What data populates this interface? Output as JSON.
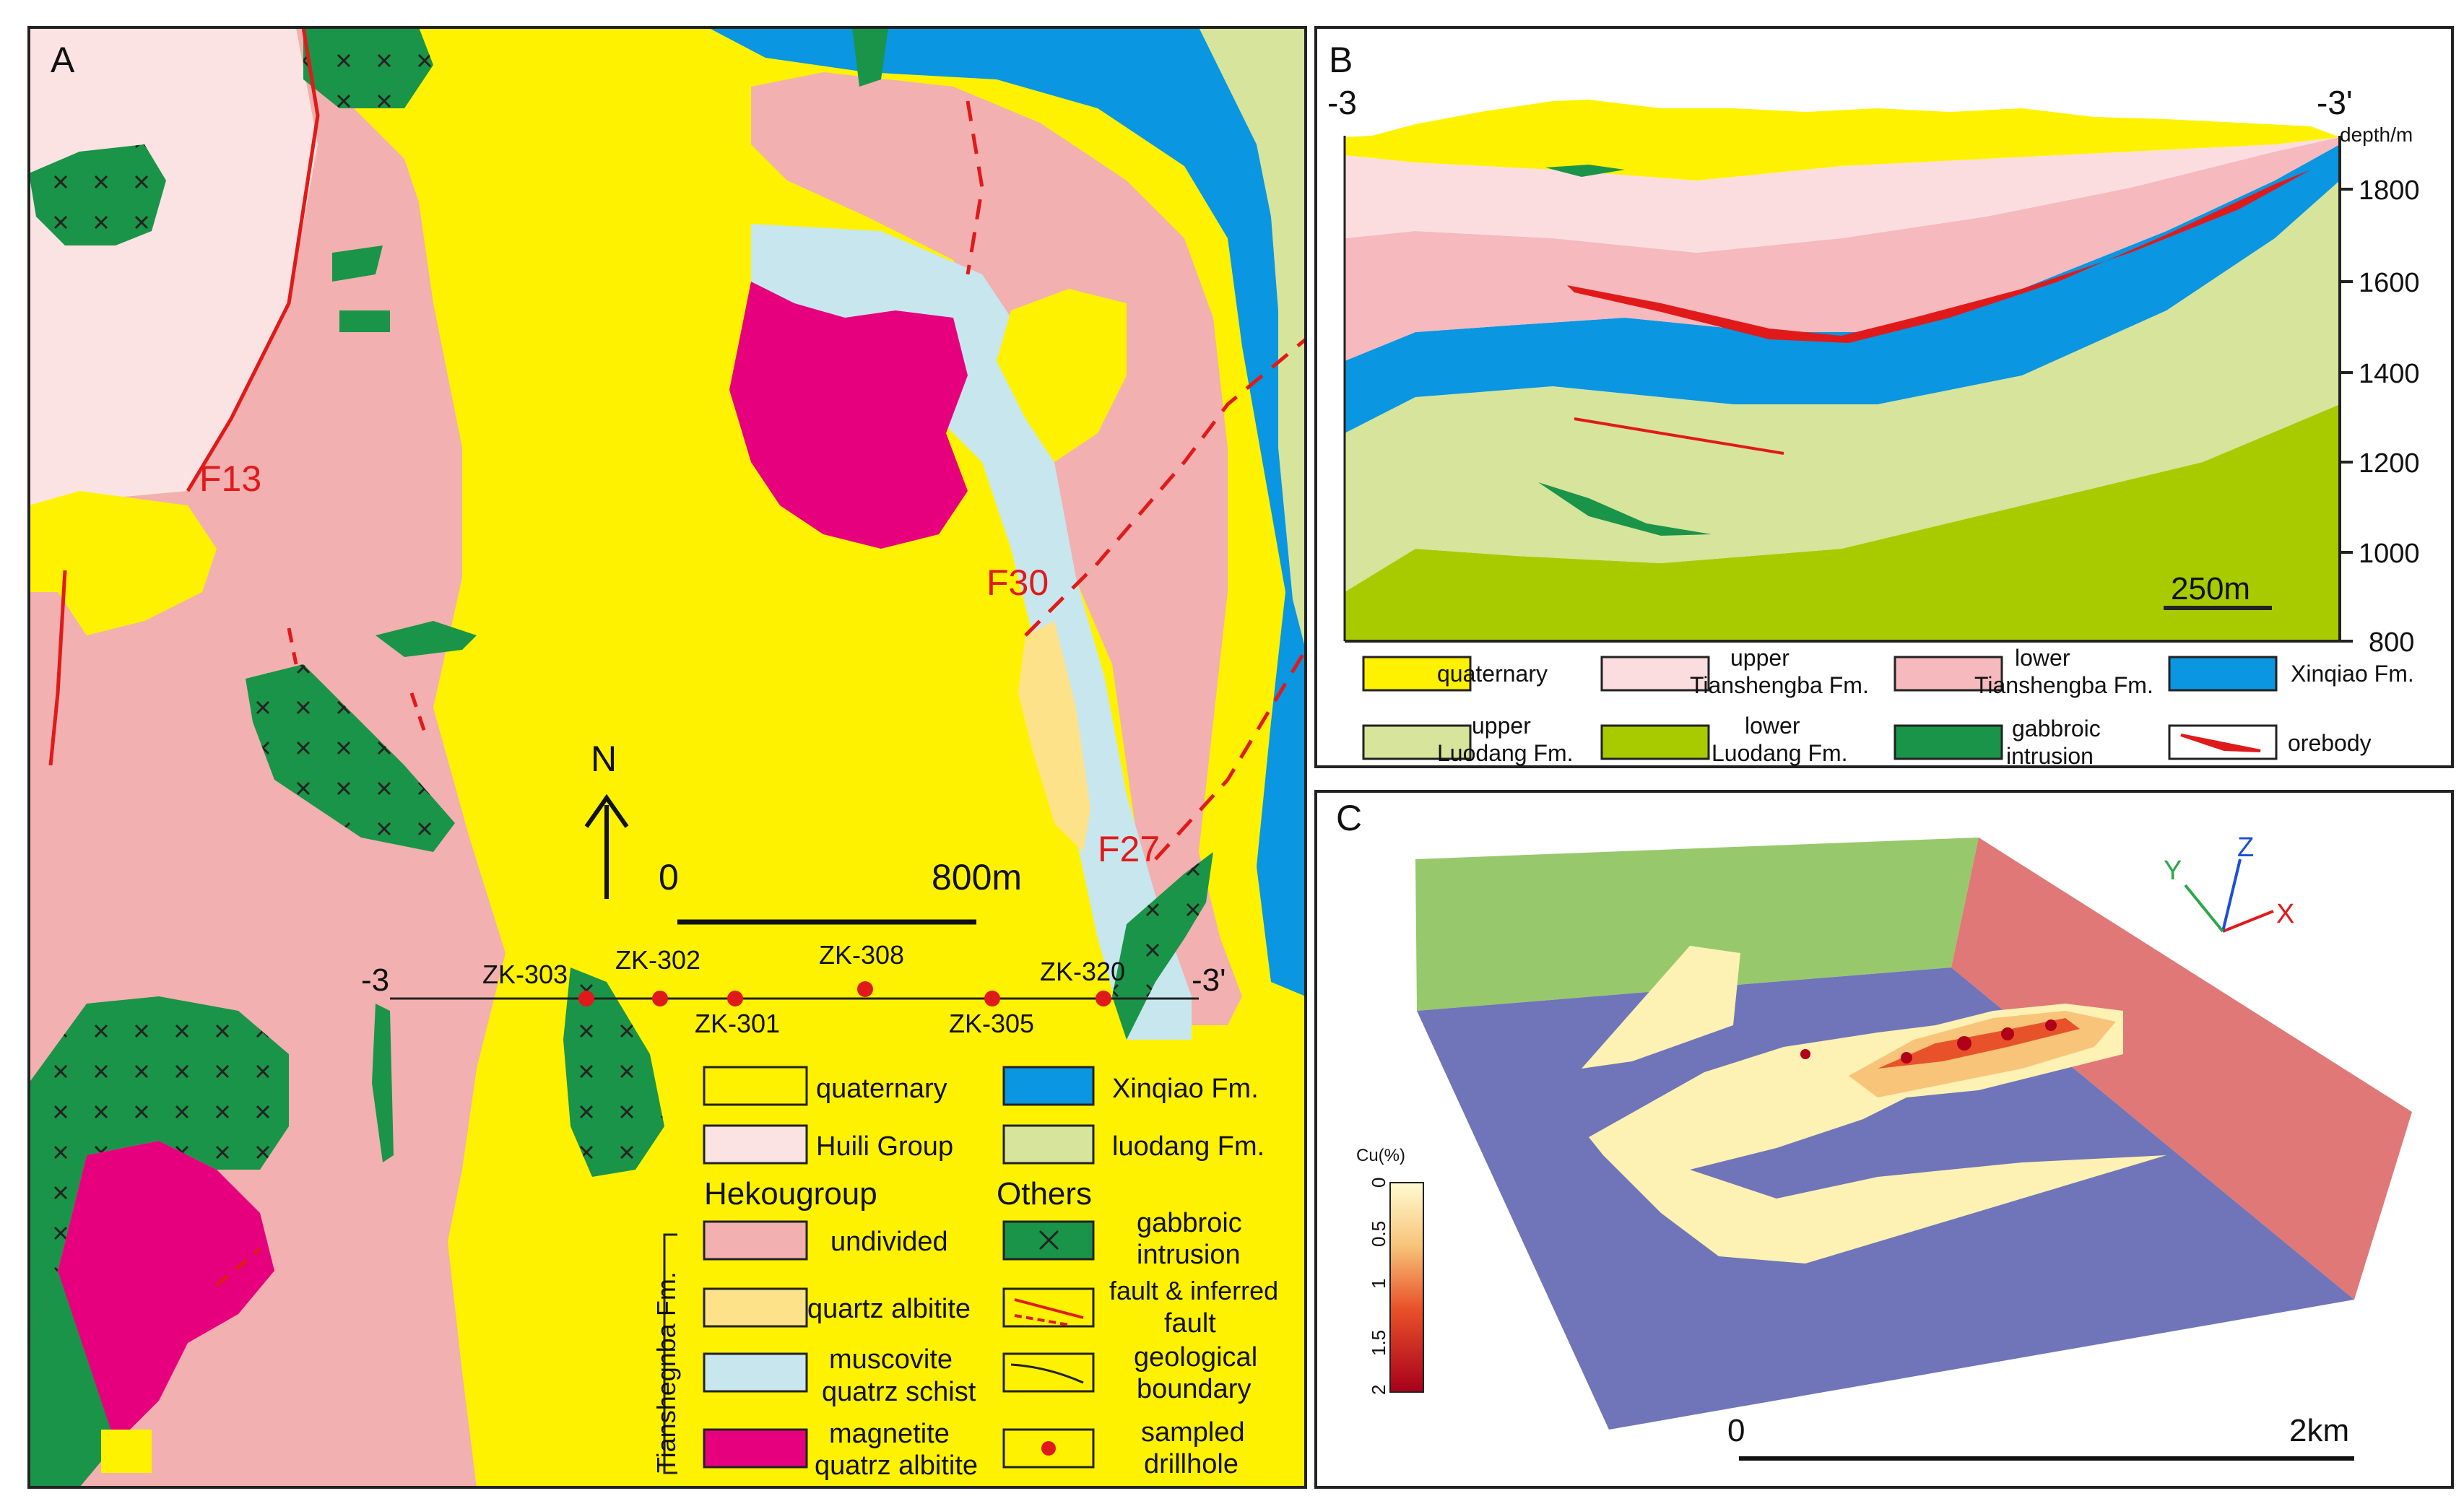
{
  "panel_a": {
    "letter": "A",
    "faults": {
      "f13": "F13",
      "f30": "F30",
      "f27": "F27"
    },
    "north": "N",
    "scale": {
      "zero": "0",
      "end": "800m"
    },
    "section": {
      "start": "-3",
      "end": "-3'"
    },
    "drillholes": {
      "zk303": "ZK-303",
      "zk302": "ZK-302",
      "zk301": "ZK-301",
      "zk308": "ZK-308",
      "zk305": "ZK-305",
      "zk320": "ZK-320"
    },
    "legend": {
      "quaternary": "quaternary",
      "huili": "Huili Group",
      "hekou": "Hekougroup",
      "undivided": "undivided",
      "quartz_albitite": "quartz albitite",
      "muscovite_1": "muscovite",
      "muscovite_2": "quatrz schist",
      "magnetite_1": "magnetite",
      "magnetite_2": "quatrz albitite",
      "tianshengba_vertical": "Tianshegnba Fm.",
      "xinqiao": "Xinqiao Fm.",
      "luodang": "luodang Fm.",
      "others": "Others",
      "gabbroic_1": "gabbroic",
      "gabbroic_2": "intrusion",
      "fault_1": "fault & inferred",
      "fault_2": "fault",
      "boundary_1": "geological",
      "boundary_2": "boundary",
      "drill_1": "sampled",
      "drill_2": "drillhole"
    }
  },
  "panel_b": {
    "letter": "B",
    "section_start": "-3",
    "section_end": "-3'",
    "depth_label": "depth/m",
    "depth_ticks": [
      "1800",
      "1600",
      "1400",
      "1200",
      "1000",
      "800"
    ],
    "scale": "250m",
    "legend": {
      "quaternary": "quaternary",
      "upper_tsb_1": "upper",
      "upper_tsb_2": "Tianshengba Fm.",
      "lower_tsb_1": "lower",
      "lower_tsb_2": "Tianshengba Fm.",
      "xinqiao": "Xinqiao Fm.",
      "upper_ld_1": "upper",
      "upper_ld_2": "Luodang Fm.",
      "lower_ld_1": "lower",
      "lower_ld_2": "Luodang Fm.",
      "gabbro_1": "gabbroic",
      "gabbro_2": "intrusion",
      "orebody": "orebody"
    }
  },
  "panel_c": {
    "letter": "C",
    "axes": {
      "x": "X",
      "y": "Y",
      "z": "Z"
    },
    "colorbar_title": "Cu(%)",
    "colorbar_ticks": [
      "0",
      "0.5",
      "1",
      "1.5",
      "2"
    ],
    "scale": {
      "zero": "0",
      "end": "2km"
    }
  },
  "colors": {
    "quaternary": "#fff200",
    "huili": "#fbe3e3",
    "undivided": "#f2b0b0",
    "quartz_albitite": "#fde28a",
    "muscovite": "#c8e6ee",
    "magnetite": "#e6007e",
    "xinqiao": "#0a96e0",
    "luodang": "#d7e49b",
    "lower_luodang": "#a8cb00",
    "gabbro": "#1a9448",
    "fault": "#e01a1a",
    "upper_tsb": "#fbdde0",
    "lower_tsb": "#f5b9be"
  }
}
